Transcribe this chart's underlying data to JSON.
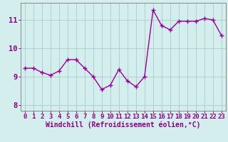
{
  "x": [
    0,
    1,
    2,
    3,
    4,
    5,
    6,
    7,
    8,
    9,
    10,
    11,
    12,
    13,
    14,
    15,
    16,
    17,
    18,
    19,
    20,
    21,
    22,
    23
  ],
  "y": [
    9.3,
    9.3,
    9.15,
    9.05,
    9.2,
    9.6,
    9.6,
    9.3,
    9.0,
    8.55,
    8.7,
    9.25,
    8.85,
    8.65,
    9.0,
    11.35,
    10.8,
    10.65,
    10.95,
    10.95,
    10.95,
    11.05,
    11.0,
    10.45
  ],
  "line_color": "#990099",
  "marker": "+",
  "markersize": 4,
  "linewidth": 1.0,
  "markeredgewidth": 1.0,
  "xlabel": "Windchill (Refroidissement éolien,°C)",
  "xlim": [
    -0.5,
    23.5
  ],
  "ylim": [
    7.8,
    11.6
  ],
  "yticks": [
    8,
    9,
    10,
    11
  ],
  "xtick_labels": [
    "0",
    "1",
    "2",
    "3",
    "4",
    "5",
    "6",
    "7",
    "8",
    "9",
    "10",
    "11",
    "12",
    "13",
    "14",
    "15",
    "16",
    "17",
    "18",
    "19",
    "20",
    "21",
    "22",
    "23"
  ],
  "bg_color": "#d4eeee",
  "grid_color": "#aacccc",
  "tick_fontsize": 6.5,
  "xlabel_fontsize": 7,
  "ytick_fontsize": 7.5,
  "label_color": "#880088"
}
